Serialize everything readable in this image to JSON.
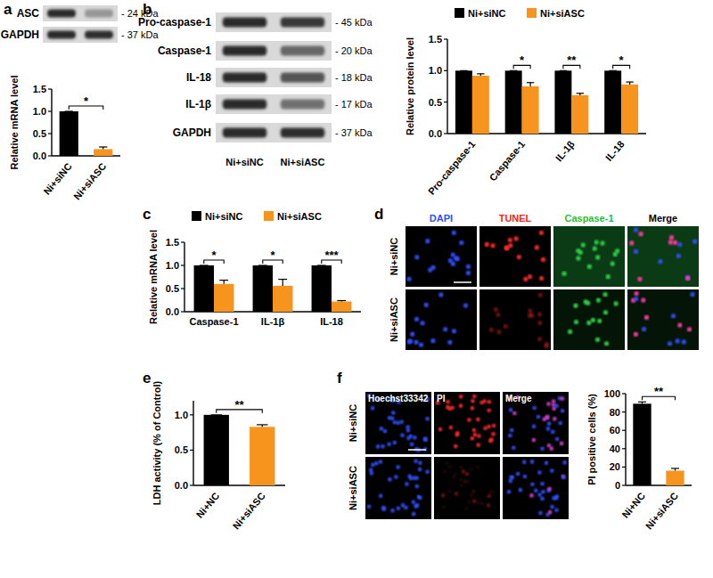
{
  "panel_labels": [
    "a",
    "b",
    "c",
    "d",
    "e",
    "f"
  ],
  "blots": [
    {
      "rows": [
        {
          "label": "ASC",
          "size": "- 24 kDa"
        },
        {
          "label": "GAPDH",
          "size": "- 37 kDa"
        }
      ]
    },
    {
      "rows": [
        {
          "label": "Pro-caspase-1",
          "size": "- 45 kDa"
        },
        {
          "label": "Caspase-1",
          "size": "- 20 kDa"
        },
        {
          "label": "IL-18",
          "size": "- 18 kDa"
        },
        {
          "label": "IL-1β",
          "size": "- 17 kDa"
        },
        {
          "label": "GAPDH",
          "size": "- 37 kDa"
        }
      ],
      "lanes": [
        "Ni+siNC",
        "Ni+siASC"
      ]
    }
  ],
  "images": [
    {
      "columns": [
        "DAPI",
        "TUNEL",
        "Caspase-1",
        "Merge"
      ],
      "colors": [
        "#2f4dff",
        "#ff2020",
        "#1fbf3a",
        "#000000"
      ],
      "rows": [
        "Ni+siNC",
        "Ni+siASC"
      ]
    },
    {
      "columns": [
        "Hoechst33342",
        "PI",
        "Merge"
      ],
      "colors": [
        "#ffffff",
        "#ffffff",
        "#ffffff"
      ],
      "rows": [
        "Ni+siNC",
        "Ni+siASC"
      ]
    }
  ],
  "chart_data": [
    {
      "type": "bar",
      "ylabel": "Relative  mRNA level",
      "categories": [
        "Ni+siNC",
        "Ni+siASC"
      ],
      "values": [
        1.0,
        0.15
      ],
      "errors": [
        0,
        0.05
      ],
      "colors": [
        "#000000",
        "#f7941d"
      ],
      "ylim": [
        0,
        1.5
      ],
      "yticks": [
        {
          "value": 0,
          "label": "0.0"
        },
        0.5,
        {
          "value": 1,
          "label": "1.0"
        },
        1.5
      ],
      "significance": "*"
    },
    {
      "type": "bar",
      "ylabel": "Relative  protein level",
      "categories": [
        "Pro-caspase-1",
        "Caspase-1",
        "IL-1β",
        "IL-18"
      ],
      "series": [
        {
          "name": "Ni+siNC",
          "color": "#000000",
          "values": [
            1,
            1,
            1,
            1
          ],
          "errors": [
            0,
            0,
            0,
            0
          ]
        },
        {
          "name": "Ni+siASC",
          "color": "#f7941d",
          "values": [
            0.92,
            0.75,
            0.61,
            0.78
          ],
          "errors": [
            0.03,
            0.06,
            0.03,
            0.04
          ]
        }
      ],
      "legend": "top",
      "ylim": [
        0,
        1.5
      ],
      "yticks": [
        {
          "value": 0,
          "label": "0.0"
        },
        0.5,
        {
          "value": 1,
          "label": "1.0"
        },
        1.5
      ],
      "significance": [
        null,
        "*",
        "**",
        "*"
      ]
    },
    {
      "type": "bar",
      "ylabel": "Relative  mRNA level",
      "categories": [
        "Caspase-1",
        "IL-1β",
        "IL-18"
      ],
      "series": [
        {
          "name": "Ni+siNC",
          "color": "#000000",
          "values": [
            1,
            1,
            1
          ],
          "errors": [
            0,
            0,
            0
          ]
        },
        {
          "name": "Ni+siASC",
          "color": "#f7941d",
          "values": [
            0.6,
            0.56,
            0.22
          ],
          "errors": [
            0.08,
            0.14,
            0.02
          ]
        }
      ],
      "legend": "top",
      "ylim": [
        0,
        1.5
      ],
      "yticks": [
        {
          "value": 0,
          "label": "0.0"
        },
        0.5,
        {
          "value": 1,
          "label": "1.0"
        },
        1.5
      ],
      "significance": [
        "*",
        "*",
        "***"
      ]
    },
    {
      "type": "bar",
      "ylabel": "LDH activity (% of Control)",
      "categories": [
        "Ni+NC",
        "Ni+siASC"
      ],
      "values": [
        1.0,
        0.83
      ],
      "errors": [
        0,
        0.03
      ],
      "colors": [
        "#000000",
        "#f7941d"
      ],
      "ylim": [
        0,
        1.2
      ],
      "yticks": [
        {
          "value": 0,
          "label": "0.0"
        },
        0.5,
        {
          "value": 1,
          "label": "1.0"
        }
      ],
      "significance": "**"
    },
    {
      "type": "bar",
      "ylabel": "PI positive cells (%)",
      "categories": [
        "Ni+NC",
        "Ni+siASC"
      ],
      "values": [
        89,
        16
      ],
      "errors": [
        2,
        2.5
      ],
      "colors": [
        "#000000",
        "#f7941d"
      ],
      "ylim": [
        0,
        100
      ],
      "yticks": [
        0,
        20,
        40,
        60,
        80,
        100
      ],
      "significance": "**"
    }
  ]
}
